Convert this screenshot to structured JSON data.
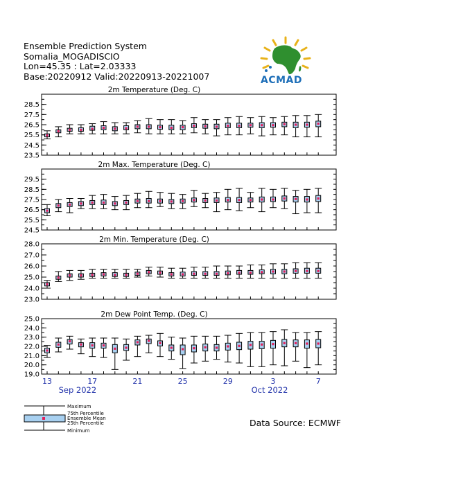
{
  "header": {
    "line1": "Ensemble Prediction System",
    "line2": "Somalia_MOGADISCIO",
    "line3": "Lon=45.35 : Lat=2.03333",
    "line4": "Base:20220912 Valid:20220913-20221007"
  },
  "logo": {
    "text": "ACMAD",
    "text_color": "#1e6fb8",
    "continent_color": "#2f8f2f",
    "ray_color": "#e8b21a"
  },
  "source": "Data Source: ECMWF",
  "legend": {
    "maximum": "Maximum",
    "p75": "75th Percentile",
    "mean": "Ensemble Mean",
    "p25": "25th Percentile",
    "minimum": "Minimum"
  },
  "colors": {
    "box_fill": "#a8d0f0",
    "mean": "#e0205a",
    "axis_label": "#2233aa"
  },
  "x_axis": {
    "day_labels": [
      "13",
      "17",
      "21",
      "25",
      "29",
      "3",
      "7"
    ],
    "month_labels": [
      "Sep 2022",
      "Oct 2022"
    ]
  },
  "chart_data": [
    {
      "type": "box",
      "title": "2m Temperature (Deg. C)",
      "ylim": [
        23.5,
        29.5
      ],
      "yticks": [
        "23.5",
        "24.5",
        "25.5",
        "26.5",
        "27.5",
        "28.5"
      ],
      "boxes": [
        {
          "min": 25.1,
          "q1": 25.3,
          "mean": 25.45,
          "q3": 25.6,
          "max": 25.9
        },
        {
          "min": 25.3,
          "q1": 25.7,
          "mean": 25.85,
          "q3": 26.0,
          "max": 26.3
        },
        {
          "min": 25.6,
          "q1": 25.85,
          "mean": 26.0,
          "q3": 26.15,
          "max": 26.5
        },
        {
          "min": 25.6,
          "q1": 25.85,
          "mean": 26.0,
          "q3": 26.2,
          "max": 26.5
        },
        {
          "min": 25.6,
          "q1": 25.95,
          "mean": 26.1,
          "q3": 26.35,
          "max": 26.6
        },
        {
          "min": 25.6,
          "q1": 26.0,
          "mean": 26.2,
          "q3": 26.4,
          "max": 26.8
        },
        {
          "min": 25.6,
          "q1": 25.9,
          "mean": 26.1,
          "q3": 26.3,
          "max": 26.7
        },
        {
          "min": 25.6,
          "q1": 26.0,
          "mean": 26.15,
          "q3": 26.4,
          "max": 26.7
        },
        {
          "min": 25.7,
          "q1": 26.1,
          "mean": 26.3,
          "q3": 26.5,
          "max": 26.9
        },
        {
          "min": 25.6,
          "q1": 26.1,
          "mean": 26.3,
          "q3": 26.5,
          "max": 27.1
        },
        {
          "min": 25.6,
          "q1": 26.05,
          "mean": 26.25,
          "q3": 26.45,
          "max": 27.0
        },
        {
          "min": 25.6,
          "q1": 26.0,
          "mean": 26.2,
          "q3": 26.45,
          "max": 27.0
        },
        {
          "min": 25.6,
          "q1": 26.0,
          "mean": 26.25,
          "q3": 26.45,
          "max": 26.9
        },
        {
          "min": 25.7,
          "q1": 26.2,
          "mean": 26.4,
          "q3": 26.6,
          "max": 27.2
        },
        {
          "min": 25.6,
          "q1": 26.15,
          "mean": 26.35,
          "q3": 26.55,
          "max": 27.0
        },
        {
          "min": 25.4,
          "q1": 26.1,
          "mean": 26.3,
          "q3": 26.55,
          "max": 27.0
        },
        {
          "min": 25.5,
          "q1": 26.2,
          "mean": 26.4,
          "q3": 26.65,
          "max": 27.2
        },
        {
          "min": 25.5,
          "q1": 26.2,
          "mean": 26.4,
          "q3": 26.65,
          "max": 27.3
        },
        {
          "min": 25.6,
          "q1": 26.25,
          "mean": 26.45,
          "q3": 26.65,
          "max": 27.2
        },
        {
          "min": 25.4,
          "q1": 26.2,
          "mean": 26.45,
          "q3": 26.7,
          "max": 27.3
        },
        {
          "min": 25.5,
          "q1": 26.25,
          "mean": 26.45,
          "q3": 26.7,
          "max": 27.2
        },
        {
          "min": 25.5,
          "q1": 26.3,
          "mean": 26.55,
          "q3": 26.75,
          "max": 27.3
        },
        {
          "min": 25.3,
          "q1": 26.2,
          "mean": 26.5,
          "q3": 26.75,
          "max": 27.4
        },
        {
          "min": 25.3,
          "q1": 26.25,
          "mean": 26.5,
          "q3": 26.75,
          "max": 27.4
        },
        {
          "min": 25.3,
          "q1": 26.3,
          "mean": 26.6,
          "q3": 26.85,
          "max": 27.5
        }
      ]
    },
    {
      "type": "box",
      "title": "2m Max. Temperature (Deg. C)",
      "ylim": [
        24.5,
        30.5
      ],
      "yticks": [
        "24.5",
        "25.5",
        "26.5",
        "27.5",
        "28.5",
        "29.5"
      ],
      "boxes": [
        {
          "min": 25.9,
          "q1": 26.2,
          "mean": 26.4,
          "q3": 26.6,
          "max": 27.0
        },
        {
          "min": 26.3,
          "q1": 26.7,
          "mean": 26.9,
          "q3": 27.1,
          "max": 27.5
        },
        {
          "min": 26.2,
          "q1": 26.8,
          "mean": 27.0,
          "q3": 27.2,
          "max": 27.6
        },
        {
          "min": 26.6,
          "q1": 26.9,
          "mean": 27.1,
          "q3": 27.3,
          "max": 27.6
        },
        {
          "min": 26.6,
          "q1": 27.0,
          "mean": 27.2,
          "q3": 27.4,
          "max": 27.9
        },
        {
          "min": 26.6,
          "q1": 27.0,
          "mean": 27.2,
          "q3": 27.45,
          "max": 28.0
        },
        {
          "min": 26.5,
          "q1": 26.9,
          "mean": 27.1,
          "q3": 27.3,
          "max": 27.8
        },
        {
          "min": 26.5,
          "q1": 27.0,
          "mean": 27.2,
          "q3": 27.4,
          "max": 27.9
        },
        {
          "min": 26.7,
          "q1": 27.15,
          "mean": 27.35,
          "q3": 27.55,
          "max": 28.1
        },
        {
          "min": 26.7,
          "q1": 27.15,
          "mean": 27.35,
          "q3": 27.6,
          "max": 28.3
        },
        {
          "min": 26.8,
          "q1": 27.15,
          "mean": 27.35,
          "q3": 27.55,
          "max": 28.2
        },
        {
          "min": 26.6,
          "q1": 27.1,
          "mean": 27.3,
          "q3": 27.5,
          "max": 28.1
        },
        {
          "min": 26.6,
          "q1": 27.15,
          "mean": 27.35,
          "q3": 27.55,
          "max": 28.0
        },
        {
          "min": 26.8,
          "q1": 27.25,
          "mean": 27.45,
          "q3": 27.65,
          "max": 28.4
        },
        {
          "min": 26.7,
          "q1": 27.2,
          "mean": 27.4,
          "q3": 27.6,
          "max": 28.1
        },
        {
          "min": 26.3,
          "q1": 27.2,
          "mean": 27.4,
          "q3": 27.65,
          "max": 28.2
        },
        {
          "min": 26.5,
          "q1": 27.25,
          "mean": 27.45,
          "q3": 27.7,
          "max": 28.5
        },
        {
          "min": 26.4,
          "q1": 27.2,
          "mean": 27.45,
          "q3": 27.7,
          "max": 28.6
        },
        {
          "min": 26.7,
          "q1": 27.25,
          "mean": 27.45,
          "q3": 27.65,
          "max": 28.2
        },
        {
          "min": 26.3,
          "q1": 27.25,
          "mean": 27.5,
          "q3": 27.75,
          "max": 28.6
        },
        {
          "min": 26.7,
          "q1": 27.3,
          "mean": 27.5,
          "q3": 27.75,
          "max": 28.5
        },
        {
          "min": 26.6,
          "q1": 27.35,
          "mean": 27.6,
          "q3": 27.85,
          "max": 28.6
        },
        {
          "min": 26.1,
          "q1": 27.25,
          "mean": 27.55,
          "q3": 27.8,
          "max": 28.4
        },
        {
          "min": 26.2,
          "q1": 27.25,
          "mean": 27.5,
          "q3": 27.8,
          "max": 28.5
        },
        {
          "min": 26.2,
          "q1": 27.3,
          "mean": 27.6,
          "q3": 27.9,
          "max": 28.6
        }
      ]
    },
    {
      "type": "box",
      "title": "2m Min. Temperature (Deg. C)",
      "ylim": [
        23.0,
        28.0
      ],
      "yticks": [
        "23.0",
        "24.0",
        "25.0",
        "26.0",
        "27.0",
        "28.0"
      ],
      "boxes": [
        {
          "min": 24.0,
          "q1": 24.2,
          "mean": 24.35,
          "q3": 24.5,
          "max": 24.7
        },
        {
          "min": 24.6,
          "q1": 24.8,
          "mean": 24.95,
          "q3": 25.1,
          "max": 25.5
        },
        {
          "min": 24.7,
          "q1": 25.0,
          "mean": 25.15,
          "q3": 25.3,
          "max": 25.6
        },
        {
          "min": 24.8,
          "q1": 25.0,
          "mean": 25.15,
          "q3": 25.3,
          "max": 25.6
        },
        {
          "min": 24.9,
          "q1": 25.05,
          "mean": 25.2,
          "q3": 25.35,
          "max": 25.7
        },
        {
          "min": 24.9,
          "q1": 25.1,
          "mean": 25.25,
          "q3": 25.4,
          "max": 25.7
        },
        {
          "min": 24.9,
          "q1": 25.05,
          "mean": 25.2,
          "q3": 25.4,
          "max": 25.7
        },
        {
          "min": 24.9,
          "q1": 25.05,
          "mean": 25.2,
          "q3": 25.35,
          "max": 25.7
        },
        {
          "min": 25.0,
          "q1": 25.15,
          "mean": 25.3,
          "q3": 25.45,
          "max": 25.7
        },
        {
          "min": 25.1,
          "q1": 25.3,
          "mean": 25.45,
          "q3": 25.6,
          "max": 25.9
        },
        {
          "min": 25.0,
          "q1": 25.25,
          "mean": 25.4,
          "q3": 25.55,
          "max": 25.9
        },
        {
          "min": 24.9,
          "q1": 25.1,
          "mean": 25.25,
          "q3": 25.4,
          "max": 25.8
        },
        {
          "min": 24.9,
          "q1": 25.1,
          "mean": 25.25,
          "q3": 25.45,
          "max": 25.8
        },
        {
          "min": 24.9,
          "q1": 25.15,
          "mean": 25.3,
          "q3": 25.5,
          "max": 25.9
        },
        {
          "min": 24.9,
          "q1": 25.15,
          "mean": 25.3,
          "q3": 25.5,
          "max": 25.9
        },
        {
          "min": 24.9,
          "q1": 25.15,
          "mean": 25.3,
          "q3": 25.5,
          "max": 26.0
        },
        {
          "min": 24.9,
          "q1": 25.2,
          "mean": 25.35,
          "q3": 25.55,
          "max": 26.0
        },
        {
          "min": 24.9,
          "q1": 25.25,
          "mean": 25.4,
          "q3": 25.6,
          "max": 26.0
        },
        {
          "min": 24.9,
          "q1": 25.25,
          "mean": 25.4,
          "q3": 25.6,
          "max": 26.1
        },
        {
          "min": 24.9,
          "q1": 25.3,
          "mean": 25.45,
          "q3": 25.65,
          "max": 26.1
        },
        {
          "min": 24.9,
          "q1": 25.3,
          "mean": 25.5,
          "q3": 25.7,
          "max": 26.2
        },
        {
          "min": 24.9,
          "q1": 25.3,
          "mean": 25.5,
          "q3": 25.7,
          "max": 26.2
        },
        {
          "min": 24.9,
          "q1": 25.35,
          "mean": 25.55,
          "q3": 25.75,
          "max": 26.3
        },
        {
          "min": 24.9,
          "q1": 25.35,
          "mean": 25.55,
          "q3": 25.8,
          "max": 26.3
        },
        {
          "min": 24.9,
          "q1": 25.35,
          "mean": 25.55,
          "q3": 25.8,
          "max": 26.3
        }
      ]
    },
    {
      "type": "box",
      "title": "2m Dew Point Temp. (Deg. C)",
      "ylim": [
        19.0,
        25.0
      ],
      "yticks": [
        "19.0",
        "20.0",
        "21.0",
        "22.0",
        "23.0",
        "24.0",
        "25.0"
      ],
      "boxes": [
        {
          "min": 20.8,
          "q1": 21.3,
          "mean": 21.55,
          "q3": 21.8,
          "max": 22.1
        },
        {
          "min": 21.4,
          "q1": 21.9,
          "mean": 22.2,
          "q3": 22.45,
          "max": 22.9
        },
        {
          "min": 21.7,
          "q1": 22.25,
          "mean": 22.55,
          "q3": 22.75,
          "max": 23.1
        },
        {
          "min": 21.2,
          "q1": 21.95,
          "mean": 22.2,
          "q3": 22.4,
          "max": 22.8
        },
        {
          "min": 20.9,
          "q1": 21.8,
          "mean": 22.1,
          "q3": 22.4,
          "max": 22.9
        },
        {
          "min": 20.8,
          "q1": 21.8,
          "mean": 22.1,
          "q3": 22.35,
          "max": 22.9
        },
        {
          "min": 19.5,
          "q1": 21.3,
          "mean": 21.75,
          "q3": 22.2,
          "max": 22.9
        },
        {
          "min": 20.5,
          "q1": 21.55,
          "mean": 21.85,
          "q3": 22.2,
          "max": 22.8
        },
        {
          "min": 20.9,
          "q1": 22.15,
          "mean": 22.45,
          "q3": 22.7,
          "max": 23.1
        },
        {
          "min": 21.3,
          "q1": 22.3,
          "mean": 22.6,
          "q3": 22.8,
          "max": 23.2
        },
        {
          "min": 20.9,
          "q1": 22.05,
          "mean": 22.35,
          "q3": 22.6,
          "max": 23.4
        },
        {
          "min": 20.6,
          "q1": 21.5,
          "mean": 21.85,
          "q3": 22.15,
          "max": 23.0
        },
        {
          "min": 19.6,
          "q1": 21.1,
          "mean": 21.7,
          "q3": 22.15,
          "max": 22.9
        },
        {
          "min": 20.2,
          "q1": 21.4,
          "mean": 21.8,
          "q3": 22.15,
          "max": 23.1
        },
        {
          "min": 20.4,
          "q1": 21.5,
          "mean": 21.9,
          "q3": 22.25,
          "max": 23.1
        },
        {
          "min": 20.6,
          "q1": 21.5,
          "mean": 21.85,
          "q3": 22.2,
          "max": 23.1
        },
        {
          "min": 20.3,
          "q1": 21.6,
          "mean": 22.0,
          "q3": 22.35,
          "max": 23.2
        },
        {
          "min": 20.2,
          "q1": 21.65,
          "mean": 22.05,
          "q3": 22.45,
          "max": 23.4
        },
        {
          "min": 19.8,
          "q1": 21.7,
          "mean": 22.15,
          "q3": 22.55,
          "max": 23.5
        },
        {
          "min": 19.8,
          "q1": 21.75,
          "mean": 22.2,
          "q3": 22.55,
          "max": 23.5
        },
        {
          "min": 20.0,
          "q1": 21.8,
          "mean": 22.25,
          "q3": 22.65,
          "max": 23.6
        },
        {
          "min": 19.9,
          "q1": 21.95,
          "mean": 22.35,
          "q3": 22.75,
          "max": 23.8
        },
        {
          "min": 20.4,
          "q1": 21.95,
          "mean": 22.35,
          "q3": 22.7,
          "max": 23.5
        },
        {
          "min": 19.7,
          "q1": 21.8,
          "mean": 22.3,
          "q3": 22.7,
          "max": 23.5
        },
        {
          "min": 20.0,
          "q1": 21.85,
          "mean": 22.3,
          "q3": 22.75,
          "max": 23.6
        }
      ]
    }
  ]
}
